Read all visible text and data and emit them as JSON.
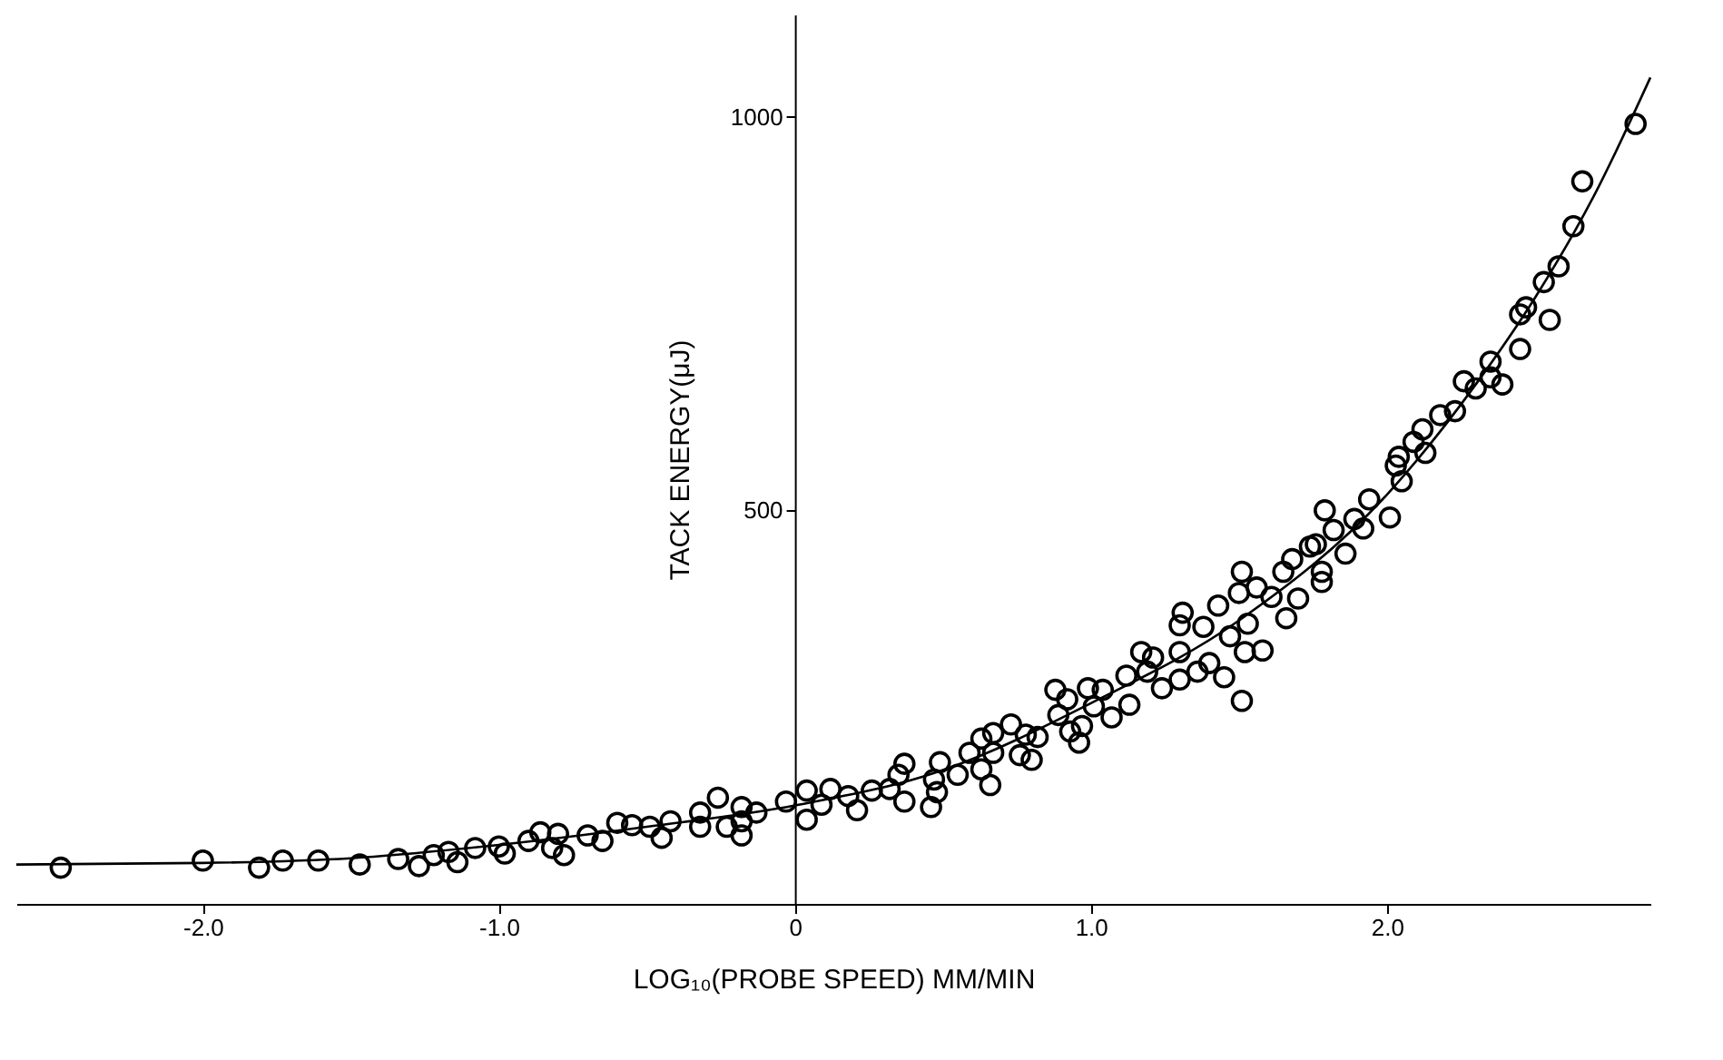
{
  "chart_data": {
    "type": "scatter",
    "xlabel": "LOG₁₀(PROBE SPEED)        MM/MIN",
    "ylabel": "TACK ENERGY(μJ)",
    "xlim": [
      -2.63,
      2.89
    ],
    "ylim": [
      0,
      1130
    ],
    "xticks": [
      {
        "value": -2,
        "label": "-2.0"
      },
      {
        "value": -1,
        "label": "-1.0"
      },
      0,
      {
        "value": 1,
        "label": "1.0"
      },
      {
        "value": 2,
        "label": "2.0"
      }
    ],
    "yticks": [
      500,
      1000
    ],
    "grid": false,
    "legend": false,
    "marker": "circle",
    "series": [
      {
        "color": "#000000",
        "x": [
          -2.48,
          -2.0,
          -1.81,
          -1.73,
          -1.61,
          -1.47,
          -1.34,
          -1.27,
          -1.22,
          -1.17,
          -1.14,
          -1.08,
          -1.0,
          -0.98,
          -0.9,
          -0.86,
          -0.8,
          -0.82,
          -0.78,
          -0.7,
          -0.65,
          -0.6,
          -0.55,
          -0.49,
          -0.45,
          -0.42,
          -0.32,
          -0.26,
          -0.32,
          -0.23,
          -0.18,
          -0.18,
          -0.18,
          -0.13,
          -0.03,
          0.04,
          0.04,
          0.09,
          0.12,
          0.18,
          0.21,
          0.26,
          0.32,
          0.35,
          0.37,
          0.37,
          0.46,
          0.48,
          0.47,
          0.49,
          0.55,
          0.59,
          0.63,
          0.63,
          0.66,
          0.67,
          0.67,
          0.73,
          0.76,
          0.78,
          0.8,
          0.82,
          0.88,
          0.89,
          0.92,
          0.93,
          0.96,
          0.97,
          0.99,
          1.04,
          1.01,
          1.07,
          1.12,
          1.13,
          1.17,
          1.21,
          1.19,
          1.24,
          1.3,
          1.3,
          1.31,
          1.3,
          1.36,
          1.38,
          1.4,
          1.43,
          1.45,
          1.47,
          1.51,
          1.51,
          1.5,
          1.52,
          1.53,
          1.56,
          1.58,
          1.61,
          1.66,
          1.65,
          1.68,
          1.7,
          1.74,
          1.76,
          1.78,
          1.78,
          1.79,
          1.82,
          1.86,
          1.89,
          1.92,
          1.94,
          2.01,
          2.03,
          2.05,
          2.04,
          2.09,
          2.12,
          2.13,
          2.18,
          2.23,
          2.26,
          2.3,
          2.35,
          2.35,
          2.39,
          2.45,
          2.47,
          2.45,
          2.55,
          2.53,
          2.63,
          2.66,
          2.58,
          2.84
        ],
        "values": [
          46,
          55,
          46,
          55,
          55,
          50,
          57,
          48,
          62,
          66,
          53,
          71,
          73,
          64,
          80,
          91,
          89,
          71,
          62,
          87,
          80,
          103,
          100,
          98,
          84,
          105,
          116,
          135,
          98,
          98,
          123,
          105,
          87,
          116,
          130,
          144,
          107,
          126,
          146,
          137,
          119,
          144,
          146,
          164,
          178,
          130,
          123,
          142,
          158,
          180,
          164,
          192,
          171,
          210,
          151,
          217,
          192,
          228,
          189,
          215,
          183,
          212,
          272,
          240,
          260,
          219,
          205,
          226,
          274,
          272,
          251,
          237,
          290,
          253,
          320,
          313,
          295,
          274,
          320,
          285,
          370,
          354,
          295,
          352,
          306,
          379,
          288,
          340,
          258,
          422,
          395,
          320,
          356,
          402,
          322,
          390,
          363,
          422,
          438,
          388,
          454,
          457,
          422,
          409,
          500,
          475,
          445,
          489,
          477,
          514,
          491,
          557,
          537,
          568,
          587,
          603,
          573,
          621,
          626,
          664,
          655,
          689,
          669,
          660,
          749,
          758,
          705,
          742,
          790,
          861,
          918,
          810,
          991
        ]
      },
      {
        "type": "line",
        "marker": "none",
        "line_style": "solid",
        "color": "#000000",
        "x": [
          -2.63,
          -2.0,
          -1.5,
          -1.0,
          -0.5,
          0.0,
          0.5,
          1.0,
          1.5,
          2.0,
          2.3,
          2.5,
          2.7,
          2.89
        ],
        "values": [
          50,
          52,
          58,
          75,
          98,
          125,
          170,
          255,
          360,
          520,
          660,
          770,
          900,
          1050
        ]
      }
    ]
  }
}
